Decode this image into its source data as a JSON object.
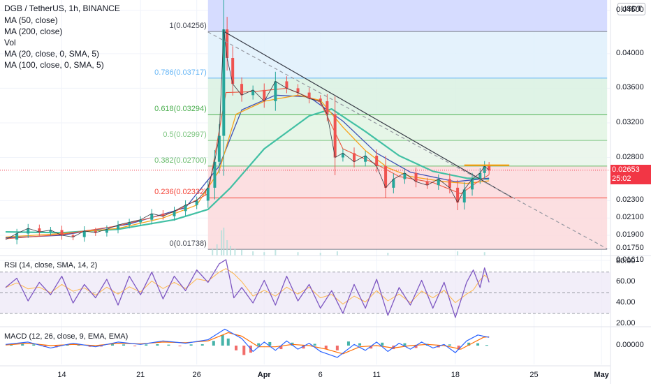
{
  "header": {
    "title": "DGB / TetherUS, 1h, BINANCE",
    "indicators": [
      "MA (50, close)",
      "MA (200, close)",
      "Vol",
      "MA (20, close, 0, SMA, 5)",
      "MA (100, close, 0, SMA, 5)"
    ]
  },
  "currency_badge": "USDT",
  "current_price": {
    "value": "0.02653",
    "countdown": "25:02"
  },
  "chart_data": {
    "type": "line",
    "price_axis": {
      "ticks": [
        "0.04500",
        "0.04000",
        "0.03600",
        "0.03200",
        "0.02800",
        "0.02300",
        "0.02100",
        "0.01900",
        "0.01750",
        "0.01610"
      ],
      "values": [
        0.045,
        0.04,
        0.036,
        0.032,
        0.028,
        0.023,
        0.021,
        0.019,
        0.0175,
        0.0161
      ]
    },
    "date_axis": {
      "ticks": [
        {
          "label": "14",
          "day": 14
        },
        {
          "label": "21",
          "day": 21
        },
        {
          "label": "26",
          "day": 26
        },
        {
          "label": "Apr",
          "day": 32
        },
        {
          "label": "6",
          "day": 37
        },
        {
          "label": "11",
          "day": 42
        },
        {
          "label": "18",
          "day": 49
        },
        {
          "label": "25",
          "day": 56
        },
        {
          "label": "May",
          "day": 62
        }
      ]
    },
    "fib_levels": [
      {
        "label": "1(0.04256)",
        "value": 0.04256,
        "line": "#787b86",
        "fill": "#e1e3e8"
      },
      {
        "label": "0.786(0.03717)",
        "value": 0.03717,
        "line": "#64b5f6",
        "fill": "#dff0fb"
      },
      {
        "label": "0.618(0.03294)",
        "value": 0.03294,
        "line": "#4caf50",
        "fill": "#d9f1e2"
      },
      {
        "label": "0.5(0.02997)",
        "value": 0.02997,
        "line": "#81c784",
        "fill": "#e2f4e3"
      },
      {
        "label": "0.382(0.02700)",
        "value": 0.027,
        "line": "#66bb6a",
        "fill": "#e8f5e9"
      },
      {
        "label": "0.236(0.02332)",
        "value": 0.02332,
        "line": "#f44336",
        "fill": "#fbd9dc"
      },
      {
        "label": "0(0.01738)",
        "value": 0.01738,
        "line": "#787b86",
        "fill": null
      }
    ],
    "price_series": [
      [
        9,
        0.0185
      ],
      [
        10,
        0.0192
      ],
      [
        11,
        0.0198
      ],
      [
        12,
        0.0194
      ],
      [
        13,
        0.0196
      ],
      [
        14,
        0.019
      ],
      [
        15,
        0.0188
      ],
      [
        16,
        0.0195
      ],
      [
        17,
        0.0193
      ],
      [
        18,
        0.0197
      ],
      [
        19,
        0.0202
      ],
      [
        20,
        0.0205
      ],
      [
        21,
        0.0208
      ],
      [
        22,
        0.0215
      ],
      [
        23,
        0.0212
      ],
      [
        24,
        0.0218
      ],
      [
        25,
        0.0225
      ],
      [
        26,
        0.023
      ],
      [
        27,
        0.0245
      ],
      [
        27.6,
        0.0275
      ],
      [
        28,
        0.0305
      ],
      [
        28.4,
        0.0428
      ],
      [
        28.7,
        0.0395
      ],
      [
        29.2,
        0.0365
      ],
      [
        30,
        0.0352
      ],
      [
        31,
        0.0358
      ],
      [
        32,
        0.0345
      ],
      [
        33,
        0.0368
      ],
      [
        34,
        0.036
      ],
      [
        35,
        0.0355
      ],
      [
        36,
        0.0348
      ],
      [
        37,
        0.0345
      ],
      [
        37.6,
        0.033
      ],
      [
        38.3,
        0.028
      ],
      [
        39,
        0.0285
      ],
      [
        40,
        0.0275
      ],
      [
        41,
        0.0282
      ],
      [
        42,
        0.027
      ],
      [
        42.8,
        0.0245
      ],
      [
        43.5,
        0.0255
      ],
      [
        44.5,
        0.0262
      ],
      [
        45.5,
        0.0252
      ],
      [
        46.5,
        0.0248
      ],
      [
        47.5,
        0.0255
      ],
      [
        48.5,
        0.0245
      ],
      [
        49.2,
        0.0228
      ],
      [
        49.8,
        0.0243
      ],
      [
        50.5,
        0.0255
      ],
      [
        51.2,
        0.0262
      ],
      [
        51.6,
        0.027
      ],
      [
        52,
        0.0265
      ]
    ],
    "ma50": [
      [
        9,
        0.0188
      ],
      [
        14,
        0.0192
      ],
      [
        19,
        0.0198
      ],
      [
        23,
        0.021
      ],
      [
        26,
        0.0225
      ],
      [
        28,
        0.0265
      ],
      [
        29.5,
        0.033
      ],
      [
        32,
        0.0345
      ],
      [
        35,
        0.0352
      ],
      [
        37,
        0.0346
      ],
      [
        39,
        0.0315
      ],
      [
        41,
        0.0288
      ],
      [
        43,
        0.0268
      ],
      [
        45,
        0.0258
      ],
      [
        48,
        0.0252
      ],
      [
        50,
        0.025
      ],
      [
        52,
        0.0253
      ]
    ],
    "ma200": [
      [
        9,
        0.0194
      ],
      [
        14,
        0.0193
      ],
      [
        19,
        0.0197
      ],
      [
        24,
        0.0208
      ],
      [
        27,
        0.022
      ],
      [
        29,
        0.0245
      ],
      [
        32,
        0.029
      ],
      [
        36,
        0.0328
      ],
      [
        38,
        0.0336
      ],
      [
        41,
        0.031
      ],
      [
        44,
        0.0282
      ],
      [
        47,
        0.0264
      ],
      [
        50,
        0.0256
      ],
      [
        52,
        0.0255
      ]
    ],
    "ma20": [
      [
        9,
        0.0186
      ],
      [
        14,
        0.0191
      ],
      [
        19,
        0.0201
      ],
      [
        24,
        0.0217
      ],
      [
        27,
        0.0238
      ],
      [
        28.6,
        0.0355
      ],
      [
        31,
        0.0356
      ],
      [
        34,
        0.036
      ],
      [
        37,
        0.0344
      ],
      [
        39,
        0.029
      ],
      [
        42,
        0.0272
      ],
      [
        44,
        0.0258
      ],
      [
        47,
        0.0251
      ],
      [
        49.5,
        0.0238
      ],
      [
        51,
        0.0252
      ],
      [
        52,
        0.026
      ]
    ],
    "ma100": [
      [
        9,
        0.0187
      ],
      [
        14,
        0.019
      ],
      [
        20,
        0.0203
      ],
      [
        25,
        0.0222
      ],
      [
        28,
        0.027
      ],
      [
        30,
        0.0335
      ],
      [
        33,
        0.0352
      ],
      [
        36,
        0.035
      ],
      [
        39,
        0.0322
      ],
      [
        42,
        0.0285
      ],
      [
        45,
        0.0263
      ],
      [
        49,
        0.0252
      ],
      [
        52,
        0.0256
      ]
    ],
    "trendlines": [
      {
        "name": "descending-resistance",
        "from": [
          28.5,
          0.0425
        ],
        "to": [
          54,
          0.0234
        ],
        "color": "#363a45",
        "dashed": false
      },
      {
        "name": "projection",
        "from": [
          27,
          0.0425
        ],
        "to": [
          62.5,
          0.01745
        ],
        "color": "#9598a1",
        "dashed": true
      }
    ],
    "target_line": {
      "from": [
        49.8,
        0.0271
      ],
      "to": [
        53.8,
        0.0271
      ],
      "color": "#ff9800"
    },
    "x_range": [
      8.5,
      62.8
    ],
    "y_range": [
      0.0165,
      0.0462
    ],
    "rsi": {
      "label": "RSI (14, close, SMA, 14, 2)",
      "ticks": [
        "80.00",
        "60.00",
        "40.00",
        "20.00"
      ],
      "tick_values": [
        80,
        60,
        40,
        20
      ],
      "bands": [
        70,
        50,
        30
      ],
      "y_range": [
        17,
        86
      ],
      "series": [
        [
          9,
          55
        ],
        [
          10,
          64
        ],
        [
          11,
          42
        ],
        [
          12,
          60
        ],
        [
          13,
          48
        ],
        [
          14,
          66
        ],
        [
          15,
          40
        ],
        [
          16,
          58
        ],
        [
          17,
          45
        ],
        [
          18,
          63
        ],
        [
          19,
          38
        ],
        [
          20,
          66
        ],
        [
          21,
          48
        ],
        [
          22,
          70
        ],
        [
          23,
          44
        ],
        [
          24,
          66
        ],
        [
          25,
          52
        ],
        [
          26,
          72
        ],
        [
          27,
          60
        ],
        [
          28,
          78
        ],
        [
          28.6,
          82
        ],
        [
          29.3,
          45
        ],
        [
          30,
          55
        ],
        [
          31,
          40
        ],
        [
          32,
          62
        ],
        [
          33,
          38
        ],
        [
          34,
          66
        ],
        [
          35,
          42
        ],
        [
          36,
          58
        ],
        [
          37,
          35
        ],
        [
          38,
          52
        ],
        [
          39,
          30
        ],
        [
          40,
          58
        ],
        [
          41,
          35
        ],
        [
          42,
          63
        ],
        [
          43,
          28
        ],
        [
          44,
          55
        ],
        [
          45,
          38
        ],
        [
          46,
          62
        ],
        [
          47,
          35
        ],
        [
          48,
          60
        ],
        [
          49,
          26
        ],
        [
          50,
          60
        ],
        [
          50.6,
          72
        ],
        [
          51.2,
          55
        ],
        [
          51.6,
          74
        ],
        [
          52,
          60
        ]
      ]
    },
    "macd": {
      "label": "MACD (12, 26, close, 9, EMA, EMA)",
      "ticks": [
        "0.00000"
      ],
      "tick_values": [
        0
      ],
      "y_range": [
        -1.6,
        1.6
      ],
      "macd_line": [
        [
          9,
          0.1
        ],
        [
          11,
          0.3
        ],
        [
          13,
          -0.2
        ],
        [
          15,
          0.2
        ],
        [
          17,
          -0.1
        ],
        [
          19,
          0.3
        ],
        [
          21,
          0.1
        ],
        [
          23,
          0.4
        ],
        [
          25,
          0.2
        ],
        [
          27,
          0.5
        ],
        [
          28.5,
          1.4
        ],
        [
          30,
          0.6
        ],
        [
          31,
          -0.5
        ],
        [
          32,
          0.3
        ],
        [
          33,
          -0.4
        ],
        [
          34,
          0.4
        ],
        [
          35,
          -0.3
        ],
        [
          36,
          0.2
        ],
        [
          37,
          -0.5
        ],
        [
          38.5,
          -1.0
        ],
        [
          40,
          0.1
        ],
        [
          41,
          -0.4
        ],
        [
          42,
          0.3
        ],
        [
          43,
          -0.5
        ],
        [
          44,
          0.2
        ],
        [
          45,
          -0.3
        ],
        [
          46,
          0.3
        ],
        [
          47,
          -0.2
        ],
        [
          48,
          0.1
        ],
        [
          49,
          -0.6
        ],
        [
          50,
          0.4
        ],
        [
          51,
          0.9
        ],
        [
          52,
          0.7
        ]
      ],
      "signal_line": [
        [
          9,
          0.05
        ],
        [
          11,
          0.2
        ],
        [
          13,
          0.0
        ],
        [
          15,
          0.1
        ],
        [
          17,
          0.0
        ],
        [
          19,
          0.2
        ],
        [
          21,
          0.15
        ],
        [
          23,
          0.3
        ],
        [
          25,
          0.25
        ],
        [
          27,
          0.4
        ],
        [
          28.8,
          1.1
        ],
        [
          30,
          0.8
        ],
        [
          31.5,
          -0.1
        ],
        [
          33,
          -0.1
        ],
        [
          34.5,
          0.1
        ],
        [
          36,
          0.0
        ],
        [
          37.5,
          -0.3
        ],
        [
          39,
          -0.7
        ],
        [
          40.5,
          -0.1
        ],
        [
          42,
          0.0
        ],
        [
          43.5,
          -0.2
        ],
        [
          45,
          0.0
        ],
        [
          46.5,
          0.1
        ],
        [
          48,
          0.0
        ],
        [
          49.5,
          -0.3
        ],
        [
          50.5,
          0.2
        ],
        [
          51.5,
          0.7
        ],
        [
          52,
          0.75
        ]
      ],
      "histogram": [
        [
          9.5,
          0.1
        ],
        [
          10.5,
          0.15
        ],
        [
          11.5,
          0.1
        ],
        [
          12.5,
          -0.12
        ],
        [
          13.5,
          -0.15
        ],
        [
          14.5,
          0.1
        ],
        [
          15.5,
          0.12
        ],
        [
          16.5,
          -0.1
        ],
        [
          17.5,
          -0.08
        ],
        [
          18.5,
          0.12
        ],
        [
          19.5,
          0.1
        ],
        [
          20.5,
          -0.05
        ],
        [
          21.5,
          0.1
        ],
        [
          22.5,
          0.12
        ],
        [
          23.5,
          0.08
        ],
        [
          24.5,
          -0.06
        ],
        [
          25.5,
          0.1
        ],
        [
          26.5,
          0.12
        ],
        [
          27.5,
          0.4
        ],
        [
          28.3,
          0.9
        ],
        [
          28.8,
          0.6
        ],
        [
          29.5,
          -0.4
        ],
        [
          30.2,
          -0.8
        ],
        [
          30.8,
          -0.6
        ],
        [
          31.5,
          0.2
        ],
        [
          32.5,
          0.3
        ],
        [
          33.5,
          -0.3
        ],
        [
          34.5,
          0.25
        ],
        [
          35.5,
          -0.25
        ],
        [
          36.5,
          0.15
        ],
        [
          37.5,
          -0.3
        ],
        [
          38.5,
          -0.4
        ],
        [
          39.5,
          0.35
        ],
        [
          40.5,
          0.2
        ],
        [
          41.5,
          -0.25
        ],
        [
          42.5,
          0.25
        ],
        [
          43.5,
          -0.3
        ],
        [
          44.5,
          0.2
        ],
        [
          45.5,
          -0.2
        ],
        [
          46.5,
          0.15
        ],
        [
          47.5,
          -0.15
        ],
        [
          48.5,
          0.1
        ],
        [
          49.3,
          -0.35
        ],
        [
          50.2,
          0.25
        ],
        [
          51,
          0.2
        ],
        [
          51.8,
          0.05
        ]
      ]
    },
    "volume": [
      [
        27.4,
        0.25
      ],
      [
        27.8,
        0.4
      ],
      [
        28.2,
        0.9
      ],
      [
        28.4,
        1.0
      ],
      [
        28.7,
        0.55
      ],
      [
        29.0,
        0.35
      ],
      [
        29.4,
        0.25
      ],
      [
        30,
        0.2
      ],
      [
        31,
        0.15
      ],
      [
        32,
        0.12
      ],
      [
        33,
        0.2
      ],
      [
        35,
        0.12
      ],
      [
        37,
        0.1
      ],
      [
        38.5,
        0.15
      ],
      [
        43,
        0.1
      ],
      [
        49.2,
        0.15
      ],
      [
        51.6,
        0.12
      ]
    ]
  },
  "colors": {
    "candles_up": "#26a69a",
    "candles_down": "#ef5350",
    "price_line": "#363a45",
    "ma50": "#f7a21b",
    "ma200": "#42c0a4",
    "ma20": "#e9573f",
    "ma100": "#3f51b5",
    "rsi_line": "#7e57c2",
    "rsi_signal": "#ffb74d",
    "rsi_band": "#ede7f6",
    "macd_line": "#2962ff",
    "signal_line": "#ff6d00",
    "hist_up": "#26a69a",
    "hist_down": "#ef5350",
    "current_price_line": "#f23645",
    "grid": "#f0f3fa"
  }
}
